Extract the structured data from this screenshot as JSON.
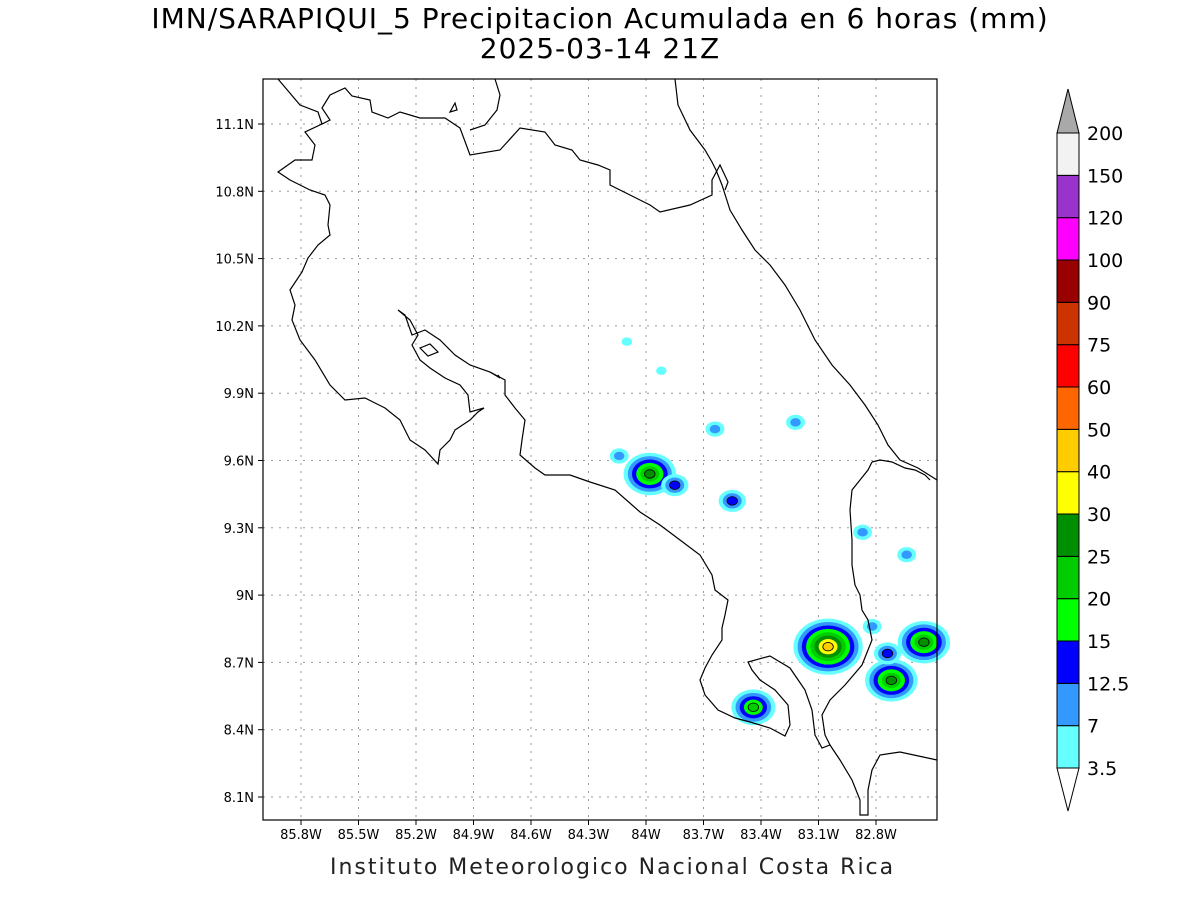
{
  "header": {
    "title_line1": "IMN/SARAPIQUI_5 Precipitacion Acumulada en 6 horas (mm)",
    "title_line2": "2025-03-14 21Z"
  },
  "footer": {
    "credit": "Instituto Meteorologico Nacional Costa Rica"
  },
  "map": {
    "lon_labels": [
      "85.8W",
      "85.5W",
      "85.2W",
      "84.9W",
      "84.6W",
      "84.3W",
      "84W",
      "83.7W",
      "83.4W",
      "83.1W",
      "82.8W"
    ],
    "lat_labels": [
      "11.1N",
      "10.8N",
      "10.5N",
      "10.2N",
      "9.9N",
      "9.6N",
      "9.3N",
      "9N",
      "8.7N",
      "8.4N",
      "8.1N"
    ]
  },
  "legend": {
    "levels": [
      "3.5",
      "7",
      "12.5",
      "15",
      "20",
      "25",
      "30",
      "40",
      "50",
      "60",
      "75",
      "90",
      "100",
      "120",
      "150",
      "200"
    ],
    "colors": [
      "#66ffff",
      "#3399ff",
      "#0000ff",
      "#00ff00",
      "#00cc00",
      "#008f00",
      "#ffff00",
      "#ffcc00",
      "#ff6600",
      "#ff0000",
      "#cc3300",
      "#990000",
      "#ff00ff",
      "#9933cc",
      "#f2f2f2"
    ],
    "over_color": "#a9a9a9",
    "under_color": "#ffffff"
  },
  "rain_cells": [
    {
      "lon": -83.98,
      "lat": 9.54,
      "max": "25"
    },
    {
      "lon": -83.85,
      "lat": 9.49,
      "max": "12.5"
    },
    {
      "lon": -83.55,
      "lat": 9.42,
      "max": "12.5"
    },
    {
      "lon": -83.05,
      "lat": 8.77,
      "max": "40"
    },
    {
      "lon": -82.72,
      "lat": 8.62,
      "max": "25"
    },
    {
      "lon": -82.55,
      "lat": 8.79,
      "max": "25"
    },
    {
      "lon": -83.44,
      "lat": 8.5,
      "max": "20"
    },
    {
      "lon": -84.1,
      "lat": 10.13,
      "max": "3.5"
    },
    {
      "lon": -83.92,
      "lat": 10.0,
      "max": "3.5"
    },
    {
      "lon": -83.64,
      "lat": 9.74,
      "max": "7"
    },
    {
      "lon": -83.22,
      "lat": 9.77,
      "max": "7"
    },
    {
      "lon": -84.14,
      "lat": 9.62,
      "max": "7"
    },
    {
      "lon": -82.87,
      "lat": 9.28,
      "max": "7"
    },
    {
      "lon": -82.64,
      "lat": 9.18,
      "max": "7"
    },
    {
      "lon": -82.74,
      "lat": 8.74,
      "max": "12.5"
    },
    {
      "lon": -82.82,
      "lat": 8.86,
      "max": "7"
    }
  ]
}
